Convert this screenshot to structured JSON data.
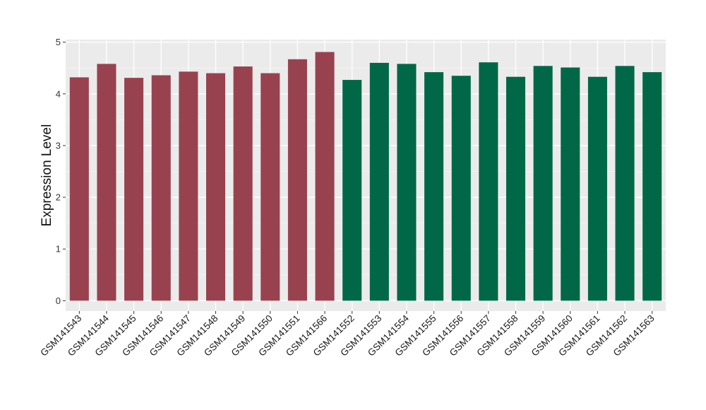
{
  "colors": {
    "panel_background": "#ebebeb",
    "grid_major": "#ffffff",
    "grid_minor": "#f5f5f5",
    "group_1": "#99424f",
    "group_2": "#006846"
  },
  "chart_data": {
    "type": "bar",
    "title": "",
    "xlabel": "",
    "ylabel": "Expression Level",
    "ylim": [
      -0.2,
      5.05
    ],
    "yticks": [
      "0",
      "1",
      "2",
      "3",
      "4",
      "5"
    ],
    "grid": true,
    "legend": "none",
    "categories": [
      "GSM141543",
      "GSM141544",
      "GSM141545",
      "GSM141546",
      "GSM141547",
      "GSM141548",
      "GSM141549",
      "GSM141550",
      "GSM141551",
      "GSM141566",
      "GSM141552",
      "GSM141553",
      "GSM141554",
      "GSM141555",
      "GSM141556",
      "GSM141557",
      "GSM141558",
      "GSM141559",
      "GSM141560",
      "GSM141561",
      "GSM141562",
      "GSM141563"
    ],
    "values": [
      4.32,
      4.58,
      4.31,
      4.36,
      4.43,
      4.4,
      4.53,
      4.4,
      4.67,
      4.81,
      4.27,
      4.6,
      4.58,
      4.42,
      4.35,
      4.61,
      4.33,
      4.54,
      4.51,
      4.33,
      4.54,
      4.42
    ],
    "groups": [
      1,
      1,
      1,
      1,
      1,
      1,
      1,
      1,
      1,
      1,
      2,
      2,
      2,
      2,
      2,
      2,
      2,
      2,
      2,
      2,
      2,
      2
    ]
  }
}
